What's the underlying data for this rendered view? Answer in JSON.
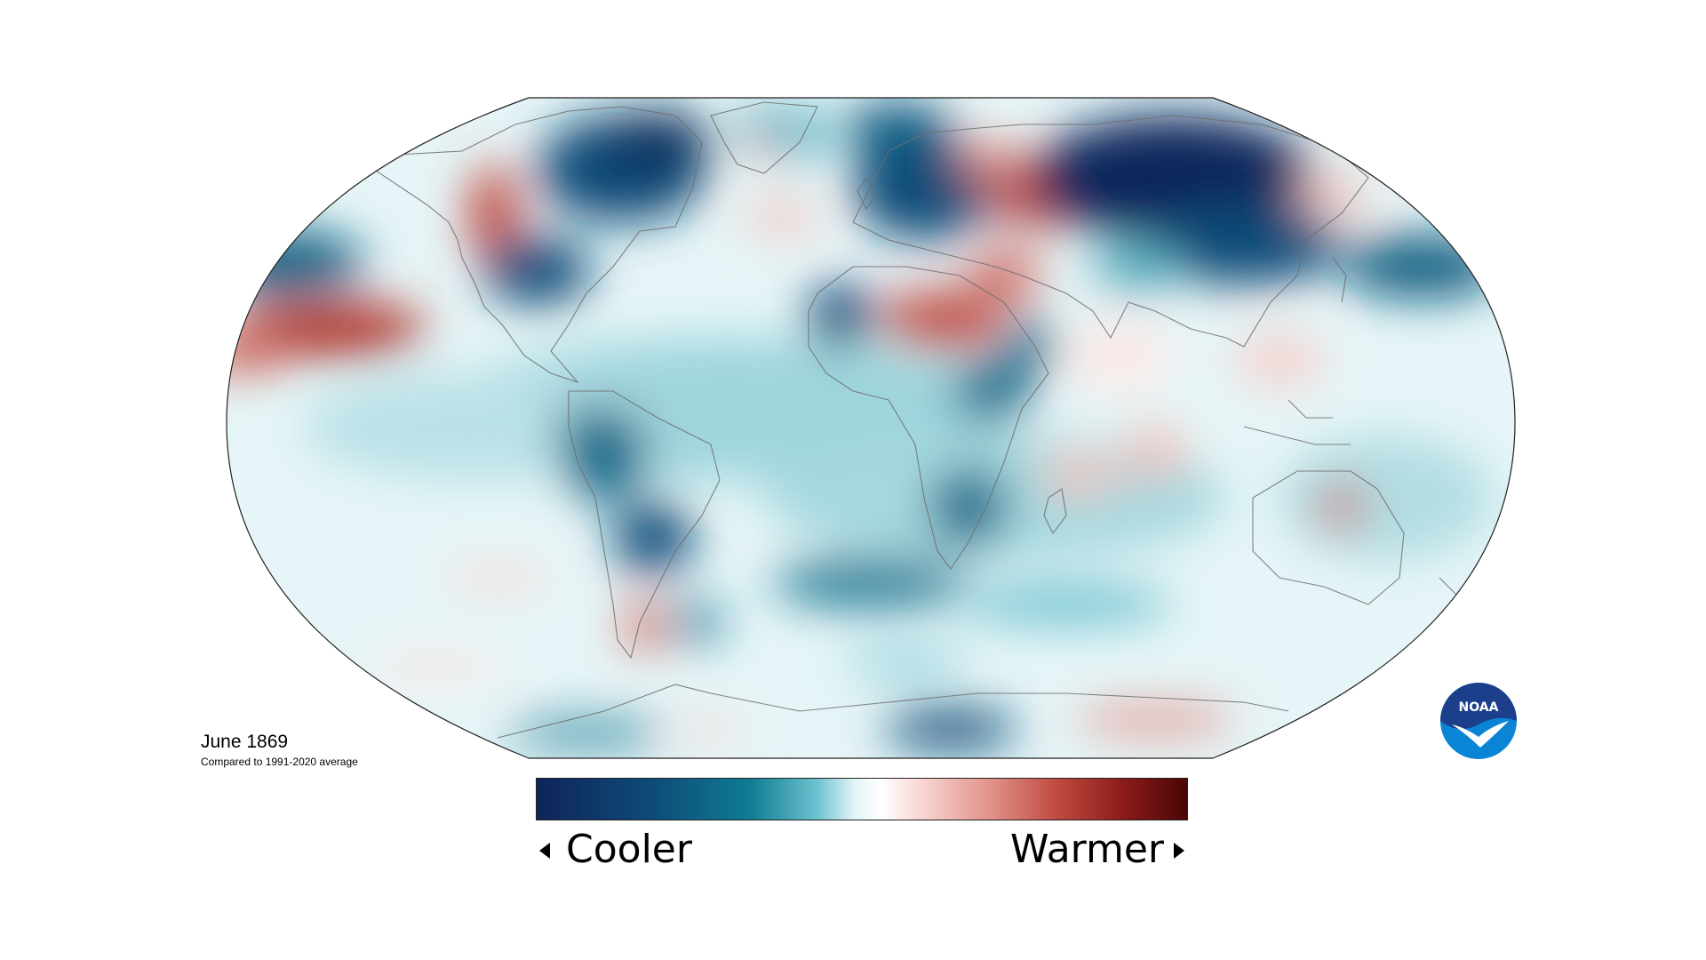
{
  "caption": {
    "title": "June 1869",
    "subtitle": "Compared to 1991-2020 average"
  },
  "legend": {
    "left_label": "Cooler",
    "right_label": "Warmer",
    "colors": [
      "#10245a",
      "#0d4c78",
      "#0f7d93",
      "#6cc1cf",
      "#e4f5f8",
      "#ffffff",
      "#f6d0cd",
      "#e09088",
      "#c04a40",
      "#8c1c1a",
      "#4a0606"
    ]
  },
  "logo": {
    "text": "NOAA",
    "icon": "noaa-bird-logo",
    "colors": {
      "top": "#1b3f8b",
      "bottom": "#0a85d6",
      "bird": "#ffffff"
    }
  },
  "map": {
    "projection": "robinson",
    "projection_icon": "world-temperature-anomaly-map"
  }
}
